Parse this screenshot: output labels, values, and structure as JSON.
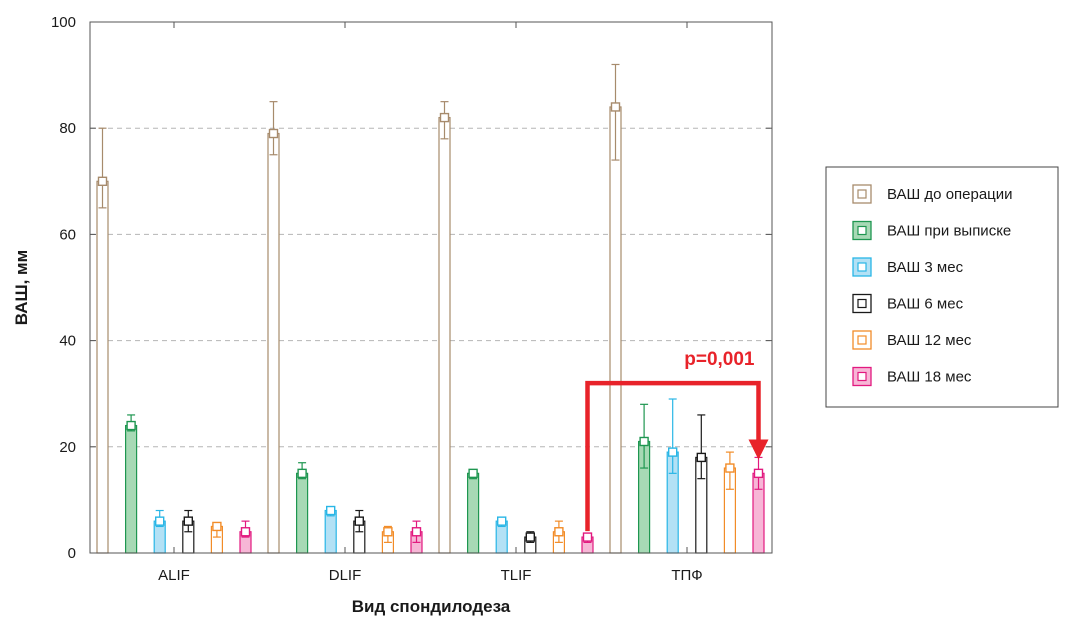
{
  "chart_data": {
    "type": "bar",
    "title": "",
    "xlabel": "Вид спондилодеза",
    "ylabel": "ВАШ, мм",
    "ylim": [
      0,
      100
    ],
    "yticks": [
      0,
      20,
      40,
      60,
      80,
      100
    ],
    "grid": true,
    "legend_position": "right",
    "categories": [
      "ALIF",
      "DLIF",
      "TLIF",
      "ТПФ"
    ],
    "series": [
      {
        "name": "ВАШ до операции",
        "color": "#a78b6c",
        "fill": "#ffffff",
        "values": [
          70,
          79,
          82,
          84
        ],
        "err_low": [
          65,
          75,
          78,
          74
        ],
        "err_high": [
          80,
          85,
          85,
          92
        ]
      },
      {
        "name": "ВАШ при выписке",
        "color": "#1e9650",
        "fill": "#a7d9b5",
        "values": [
          24,
          15,
          15,
          21
        ],
        "err_low": [
          23,
          14,
          14,
          16
        ],
        "err_high": [
          26,
          17,
          15,
          28
        ]
      },
      {
        "name": "ВАШ 3 мес",
        "color": "#29b6e6",
        "fill": "#b3e1f5",
        "values": [
          6,
          8,
          6,
          19
        ],
        "err_low": [
          5,
          7,
          5,
          15
        ],
        "err_high": [
          8,
          8,
          6,
          29
        ]
      },
      {
        "name": "ВАШ 6 мес",
        "color": "#1a1a1a",
        "fill": "#ffffff",
        "values": [
          6,
          6,
          3,
          18
        ],
        "err_low": [
          4,
          4,
          2,
          14
        ],
        "err_high": [
          8,
          8,
          4,
          26
        ]
      },
      {
        "name": "ВАШ 12 мес",
        "color": "#f28c28",
        "fill": "#ffffff",
        "values": [
          5,
          4,
          4,
          16
        ],
        "err_low": [
          3,
          2,
          2,
          12
        ],
        "err_high": [
          5,
          5,
          6,
          19
        ]
      },
      {
        "name": "ВАШ 18 мес",
        "color": "#e2197f",
        "fill": "#f7b6d6",
        "values": [
          4,
          4,
          3,
          15
        ],
        "err_low": [
          3,
          2,
          2,
          12
        ],
        "err_high": [
          6,
          6,
          3,
          18
        ]
      }
    ],
    "annotations": [
      {
        "text": "p=0,001",
        "color": "#e8232a",
        "from": {
          "category": "TLIF",
          "series": "ВАШ 18 мес"
        },
        "to": {
          "category": "ТПФ",
          "series": "ВАШ 18 мес"
        },
        "bracket_y": 32
      }
    ]
  }
}
